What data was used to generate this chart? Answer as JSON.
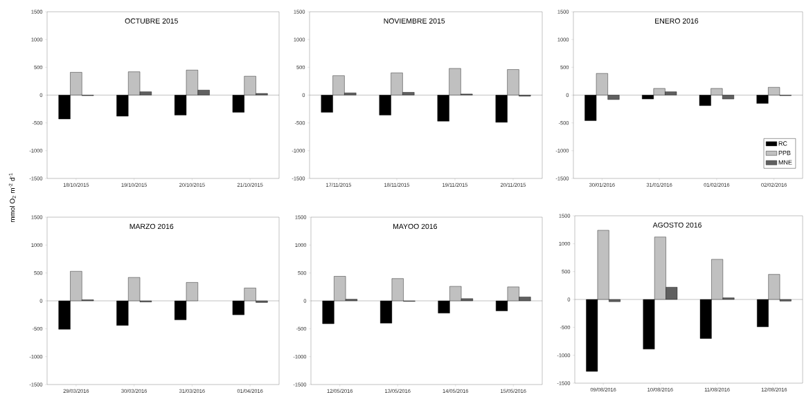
{
  "chart_data": [
    {
      "type": "bar",
      "title": "OCTUBRE 2015",
      "ylabel": "mmol O$_{2}$ m$^{-2}$ d$^{-1}$",
      "categories": [
        "18/10/2015",
        "19/10/2015",
        "20/10/2015",
        "21/10/2015"
      ],
      "ylim": [
        -1500,
        1500
      ],
      "yticks": [
        -1500,
        -1000,
        -500,
        0,
        500,
        1000,
        1500
      ],
      "series": [
        {
          "color": "#000000",
          "values": [
            -430,
            -380,
            -360,
            -310
          ]
        },
        {
          "color": "#c0c0c0",
          "values": [
            410,
            420,
            450,
            340
          ]
        },
        {
          "color": "#606060",
          "values": [
            -10,
            60,
            90,
            30
          ]
        }
      ]
    },
    {
      "type": "bar",
      "title": "NOVIEMBRE 2015",
      "categories": [
        "17/11/2015",
        "18/11/2015",
        "19/11/2015",
        "20/11/2015"
      ],
      "ylim": [
        -1500,
        1500
      ],
      "yticks": [
        -1500,
        -1000,
        -500,
        0,
        500,
        1000,
        1500
      ],
      "series": [
        {
          "color": "#000000",
          "values": [
            -310,
            -360,
            -470,
            -490
          ]
        },
        {
          "color": "#c0c0c0",
          "values": [
            350,
            400,
            480,
            460
          ]
        },
        {
          "color": "#606060",
          "values": [
            40,
            50,
            20,
            -20
          ]
        }
      ]
    },
    {
      "type": "bar",
      "title": "ENERO 2016",
      "categories": [
        "30/01/2016",
        "31/01/2016",
        "01/02/2016",
        "02/02/2016"
      ],
      "ylim": [
        -1500,
        1500
      ],
      "yticks": [
        -1500,
        -1000,
        -500,
        0,
        500,
        1000,
        1500
      ],
      "legend": "bottom right",
      "series": [
        {
          "name": "RC",
          "color": "#000000",
          "values": [
            -460,
            -70,
            -190,
            -150
          ]
        },
        {
          "name": "PPB",
          "color": "#c0c0c0",
          "values": [
            390,
            120,
            120,
            140
          ]
        },
        {
          "name": "MNE",
          "color": "#606060",
          "values": [
            -80,
            60,
            -70,
            -10
          ]
        }
      ]
    },
    {
      "type": "bar",
      "title": "MARZO 2016",
      "categories": [
        "29/03/2016",
        "30/03/2016",
        "31/03/2016",
        "01/04/2016"
      ],
      "ylim": [
        -1500,
        1500
      ],
      "yticks": [
        -1500,
        -1000,
        -500,
        0,
        500,
        1000,
        1500
      ],
      "series": [
        {
          "color": "#000000",
          "values": [
            -510,
            -440,
            -340,
            -250
          ]
        },
        {
          "color": "#c0c0c0",
          "values": [
            530,
            420,
            330,
            230
          ]
        },
        {
          "color": "#606060",
          "values": [
            20,
            -20,
            null,
            -30
          ]
        }
      ]
    },
    {
      "type": "bar",
      "title": "MAYOO 2016",
      "categories": [
        "12/05/2016",
        "13/05/2016",
        "14/05/2016",
        "15/05/2016"
      ],
      "ylim": [
        -1500,
        1500
      ],
      "yticks": [
        -1500,
        -1000,
        -500,
        0,
        500,
        1000,
        1500
      ],
      "series": [
        {
          "color": "#000000",
          "values": [
            -410,
            -400,
            -220,
            -180
          ]
        },
        {
          "color": "#c0c0c0",
          "values": [
            440,
            400,
            260,
            250
          ]
        },
        {
          "color": "#606060",
          "values": [
            30,
            -10,
            40,
            70
          ]
        }
      ]
    },
    {
      "type": "bar",
      "title": "AGOSTO 2016",
      "categories": [
        "09/08/2016",
        "10/08/2016",
        "11/08/2016",
        "12/08/2016"
      ],
      "ylim": [
        -1500,
        1500
      ],
      "yticks": [
        -1500,
        -1000,
        -500,
        0,
        500,
        1000,
        1500
      ],
      "series": [
        {
          "color": "#000000",
          "values": [
            -1290,
            -890,
            -700,
            -490
          ]
        },
        {
          "color": "#c0c0c0",
          "values": [
            1240,
            1120,
            720,
            450
          ]
        },
        {
          "color": "#606060",
          "values": [
            -40,
            220,
            30,
            -30
          ]
        }
      ]
    }
  ]
}
